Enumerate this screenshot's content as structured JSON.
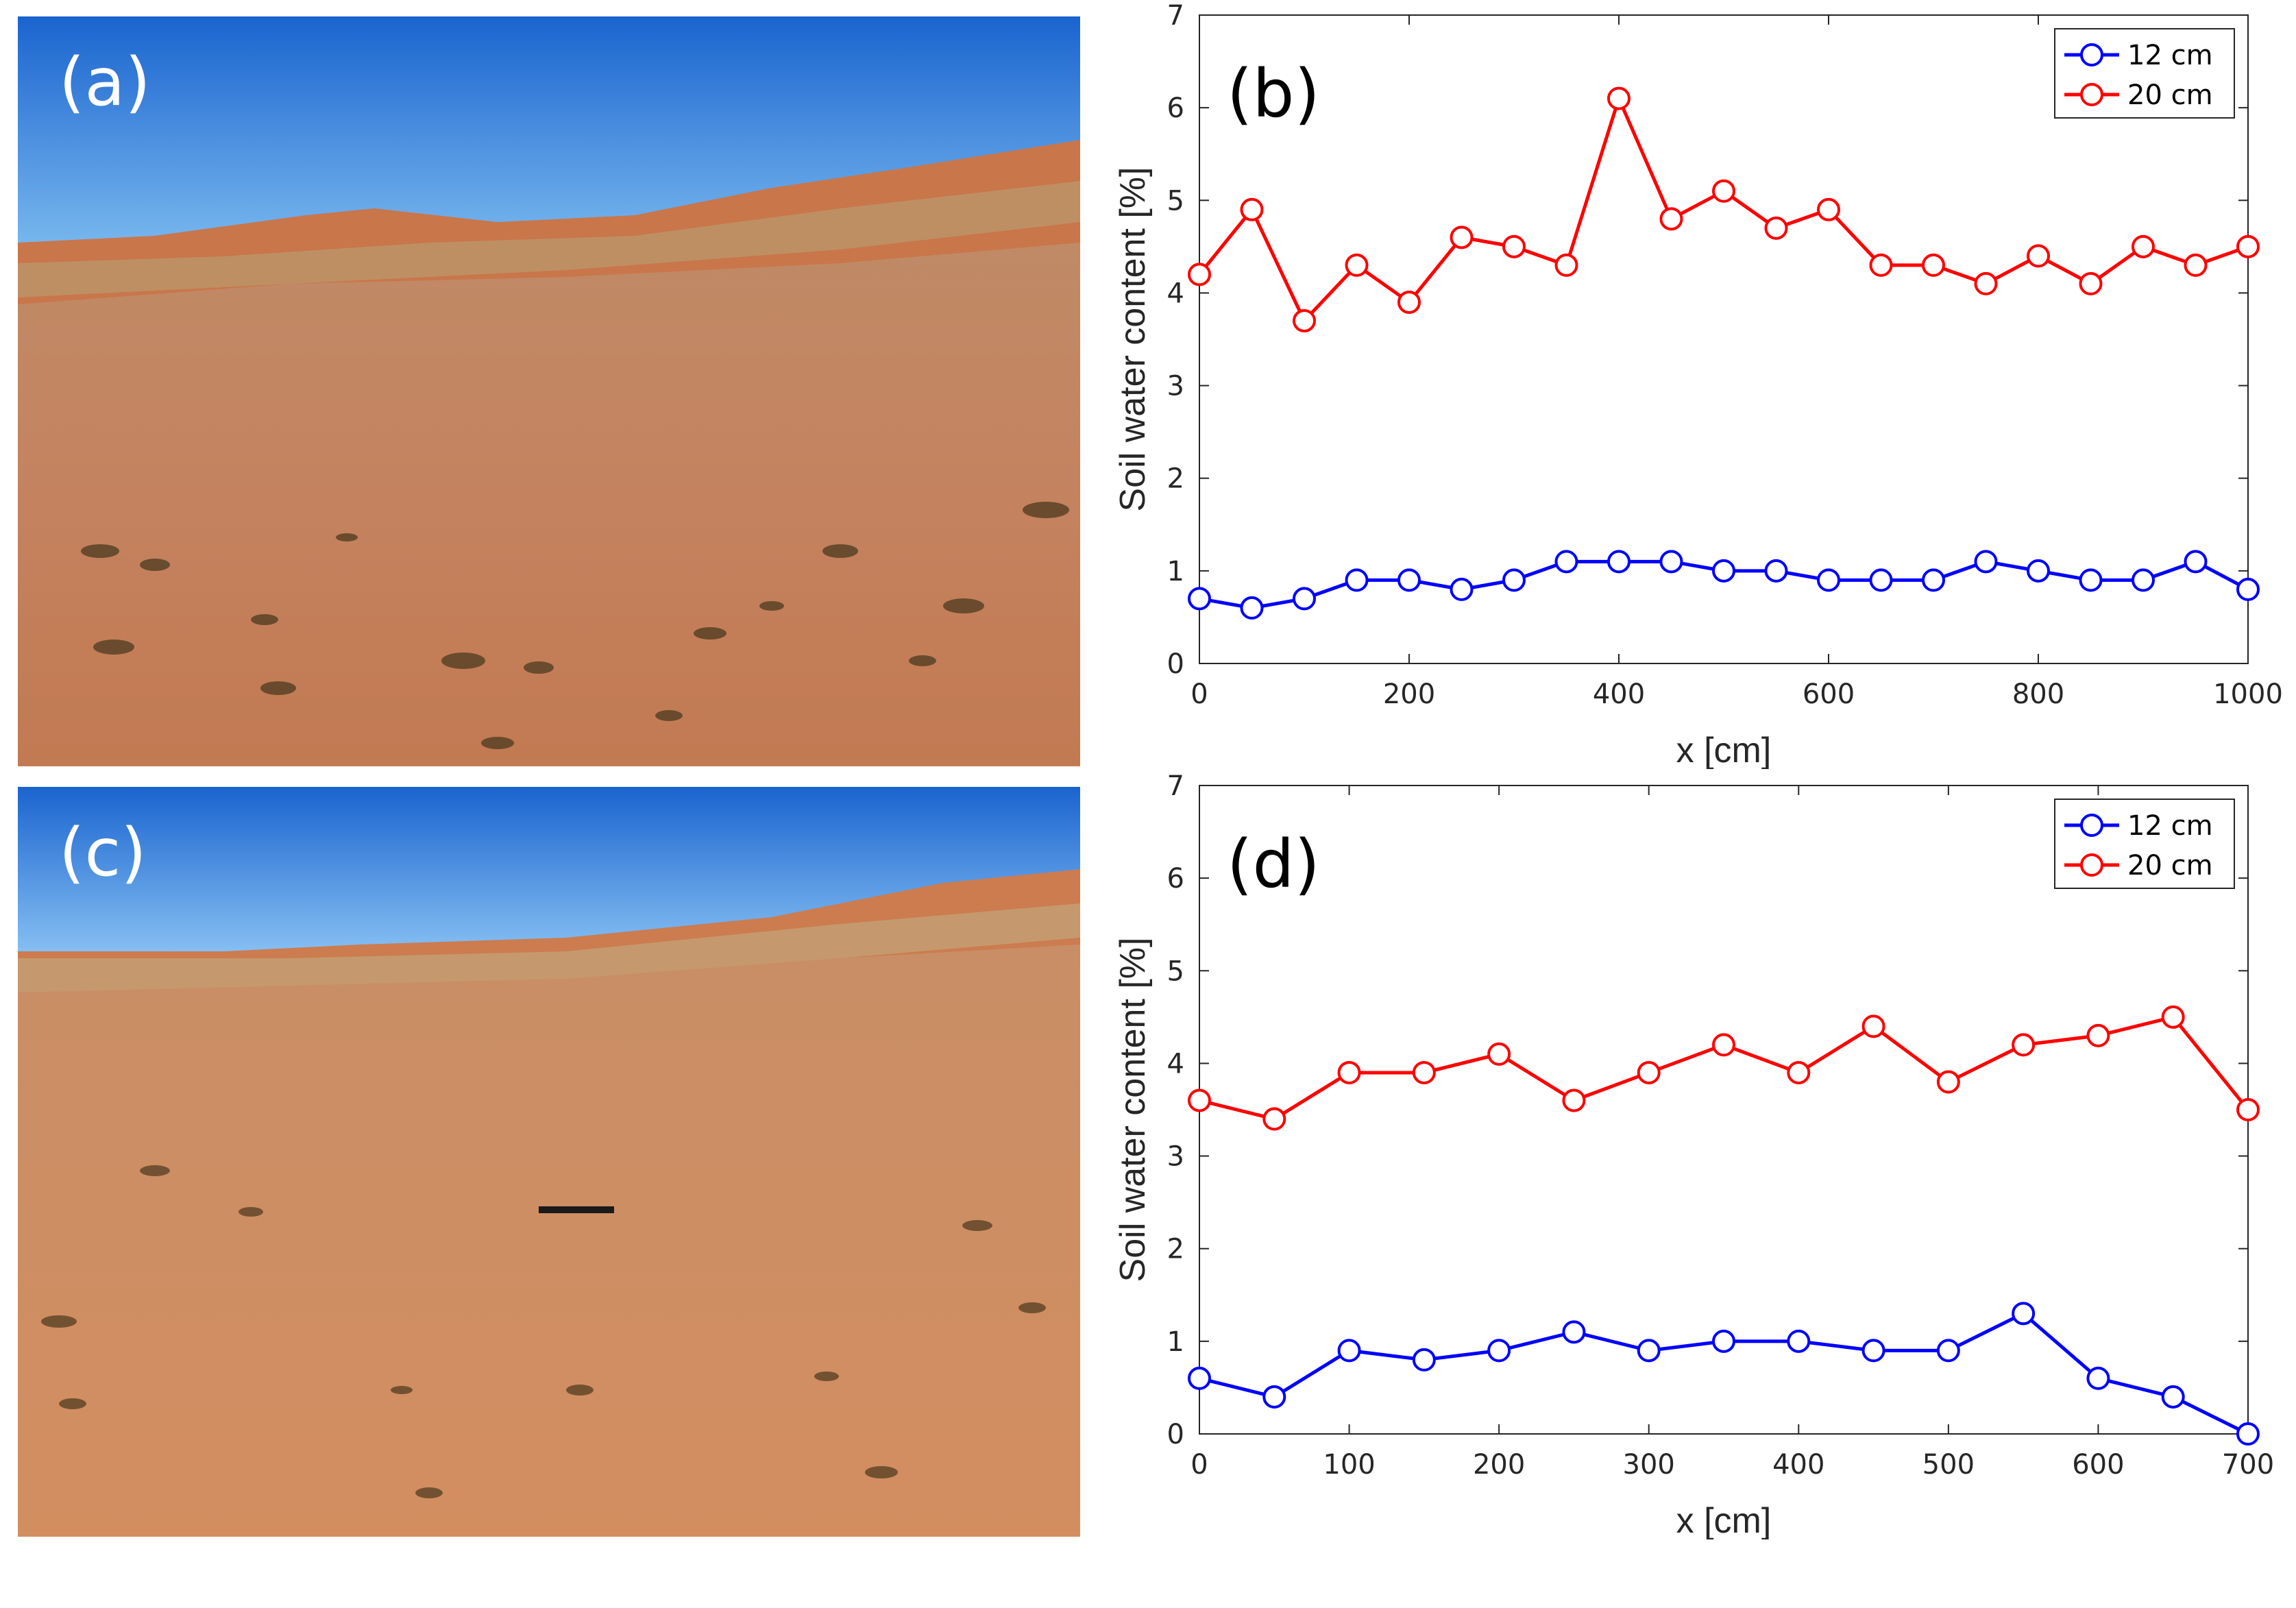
{
  "figure": {
    "panel_a_label": "(a)",
    "panel_c_label": "(c)"
  },
  "colors": {
    "series_12cm": "#0000ff",
    "series_20cm": "#ff0000",
    "sky_top": "#1f6fd6",
    "sky_bottom": "#8ec6f5",
    "sand": "#c98a5c"
  },
  "chart_data": [
    {
      "type": "line",
      "panel_label": "(b)",
      "xlabel": "x [cm]",
      "ylabel": "Soil water content [%]",
      "xlim": [
        0,
        1000
      ],
      "ylim": [
        0,
        7
      ],
      "xticks": [
        "0",
        "200",
        "400",
        "600",
        "800",
        "1000"
      ],
      "yticks": [
        "0",
        "1",
        "2",
        "3",
        "4",
        "5",
        "6",
        "7"
      ],
      "legend_position": "top-right",
      "x": [
        0,
        50,
        100,
        150,
        200,
        250,
        300,
        350,
        400,
        450,
        500,
        550,
        600,
        650,
        700,
        750,
        800,
        850,
        900,
        950,
        1000
      ],
      "series": [
        {
          "name": "12 cm",
          "color": "#0000ff",
          "values": [
            0.7,
            0.6,
            0.7,
            0.9,
            0.9,
            0.8,
            0.9,
            1.1,
            1.1,
            1.1,
            1.0,
            1.0,
            0.9,
            0.9,
            0.9,
            1.1,
            1.0,
            0.9,
            0.9,
            1.1,
            0.8
          ]
        },
        {
          "name": "20 cm",
          "color": "#ff0000",
          "values": [
            4.2,
            4.9,
            3.7,
            4.3,
            3.9,
            4.6,
            4.5,
            4.3,
            6.1,
            4.8,
            5.1,
            4.7,
            4.9,
            4.3,
            4.3,
            4.1,
            4.4,
            4.1,
            4.5,
            4.3,
            4.5
          ]
        }
      ]
    },
    {
      "type": "line",
      "panel_label": "(d)",
      "xlabel": "x [cm]",
      "ylabel": "Soil water content [%]",
      "xlim": [
        0,
        700
      ],
      "ylim": [
        0,
        7
      ],
      "xticks": [
        "0",
        "100",
        "200",
        "300",
        "400",
        "500",
        "600",
        "700"
      ],
      "yticks": [
        "0",
        "1",
        "2",
        "3",
        "4",
        "5",
        "6",
        "7"
      ],
      "legend_position": "top-right",
      "x": [
        0,
        50,
        100,
        150,
        200,
        250,
        300,
        350,
        400,
        450,
        500,
        550,
        600,
        650,
        700
      ],
      "series": [
        {
          "name": "12 cm",
          "color": "#0000ff",
          "values": [
            0.6,
            0.4,
            0.9,
            0.8,
            0.9,
            1.1,
            0.9,
            1.0,
            1.0,
            0.9,
            0.9,
            1.3,
            0.6,
            0.4,
            0.0
          ]
        },
        {
          "name": "20 cm",
          "color": "#ff0000",
          "values": [
            3.6,
            3.4,
            3.9,
            3.9,
            4.1,
            3.6,
            3.9,
            4.2,
            3.9,
            4.4,
            3.8,
            4.2,
            4.3,
            4.5,
            3.5
          ]
        }
      ]
    }
  ]
}
